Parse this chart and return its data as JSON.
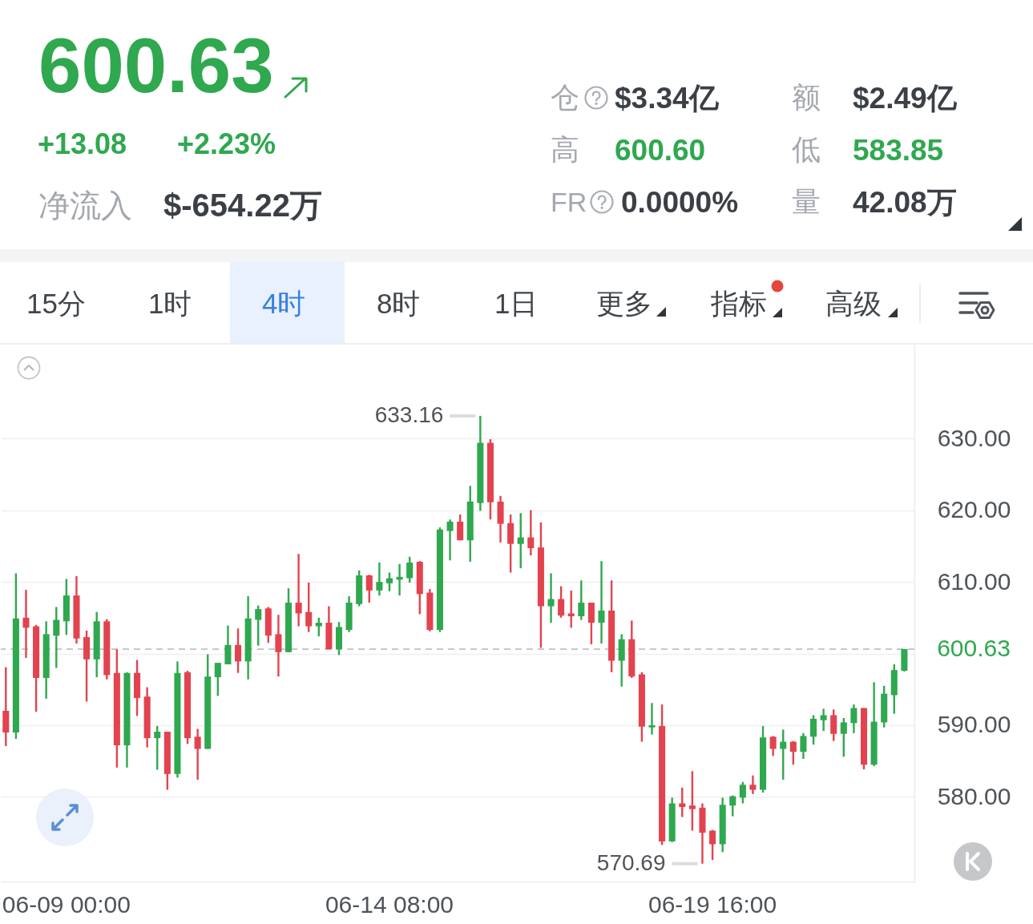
{
  "chart_data": [
    {
      "type": "other",
      "annotations": [
        "600.63",
        "+13.08",
        "+2.23%",
        "净流入",
        "$-654.22万",
        "仓",
        "$3.34亿",
        "额",
        "$2.49亿",
        "高",
        "600.60",
        "低",
        "583.85",
        "FR",
        "0.0000%",
        "量",
        "42.08万",
        "15分",
        "1时",
        "4时",
        "8时",
        "1日",
        "更多",
        "指标",
        "高级"
      ]
    },
    {
      "type": "candlestick",
      "categories": [
        null,
        null,
        null,
        null,
        null,
        null,
        "06-09 00:00",
        null,
        null,
        null,
        null,
        null,
        null,
        null,
        null,
        null,
        null,
        null,
        null,
        null,
        null,
        null,
        null,
        null,
        null,
        null,
        null,
        null,
        null,
        null,
        null,
        null,
        null,
        null,
        null,
        null,
        null,
        null,
        "06-14 08:00",
        null,
        null,
        null,
        null,
        null,
        null,
        null,
        null,
        null,
        null,
        null,
        null,
        null,
        null,
        null,
        null,
        null,
        null,
        null,
        null,
        null,
        null,
        null,
        null,
        null,
        null,
        null,
        null,
        null,
        null,
        null,
        "06-19 16:00",
        null,
        null,
        null,
        null,
        null,
        null,
        null,
        null,
        null,
        null,
        null,
        null,
        null,
        null,
        null,
        null,
        null,
        null,
        null
      ],
      "ohlc": [
        [
          592.0,
          598.1,
          587.1,
          589.0
        ],
        [
          589.0,
          611.2,
          588.1,
          604.9
        ],
        [
          605.0,
          608.9,
          599.4,
          603.6
        ],
        [
          603.8,
          604.0,
          591.9,
          596.6
        ],
        [
          596.6,
          604.5,
          593.7,
          602.7
        ],
        [
          602.5,
          606.5,
          598.0,
          604.7
        ],
        [
          604.5,
          610.4,
          602.6,
          608.1
        ],
        [
          608.1,
          610.8,
          601.4,
          602.1
        ],
        [
          602.3,
          603.2,
          593.3,
          599.2
        ],
        [
          599.2,
          605.8,
          596.7,
          604.5
        ],
        [
          604.5,
          604.8,
          596.4,
          597.0
        ],
        [
          597.3,
          600.6,
          584.1,
          587.2
        ],
        [
          587.2,
          597.4,
          584.1,
          597.3
        ],
        [
          597.3,
          599.1,
          591.3,
          593.8
        ],
        [
          594.0,
          595.3,
          586.9,
          588.2
        ],
        [
          588.2,
          589.9,
          583.8,
          589.1
        ],
        [
          589.1,
          589.1,
          581.0,
          583.2
        ],
        [
          583.2,
          598.9,
          582.7,
          597.3
        ],
        [
          597.4,
          597.6,
          587.4,
          588.2
        ],
        [
          588.4,
          589.5,
          582.4,
          586.7
        ],
        [
          586.7,
          599.9,
          586.7,
          596.8
        ],
        [
          596.7,
          598.7,
          594.1,
          598.7
        ],
        [
          598.5,
          603.9,
          598.5,
          601.2
        ],
        [
          601.2,
          603.5,
          597.3,
          598.9
        ],
        [
          598.9,
          608.0,
          596.4,
          604.9
        ],
        [
          604.7,
          606.7,
          601.1,
          606.2
        ],
        [
          606.3,
          606.5,
          601.5,
          602.5
        ],
        [
          602.7,
          605.4,
          596.8,
          600.2
        ],
        [
          600.2,
          609.1,
          600.2,
          607.1
        ],
        [
          607.1,
          613.9,
          603.8,
          605.6
        ],
        [
          605.8,
          609.9,
          603.0,
          603.8
        ],
        [
          603.8,
          605.0,
          602.4,
          604.3
        ],
        [
          604.3,
          606.6,
          600.6,
          600.6
        ],
        [
          600.6,
          604.4,
          599.8,
          603.7
        ],
        [
          603.3,
          608.0,
          603.0,
          607.1
        ],
        [
          606.9,
          611.6,
          606.6,
          610.9
        ],
        [
          610.9,
          611.0,
          607.1,
          608.8
        ],
        [
          608.8,
          612.7,
          608.1,
          610.0
        ],
        [
          609.8,
          611.3,
          608.7,
          610.5
        ],
        [
          610.3,
          612.5,
          608.1,
          610.7
        ],
        [
          610.5,
          613.5,
          609.9,
          612.7
        ],
        [
          612.8,
          612.9,
          605.5,
          608.3
        ],
        [
          608.5,
          609.0,
          603.1,
          603.3
        ],
        [
          603.3,
          617.6,
          603.0,
          617.3
        ],
        [
          617.1,
          618.7,
          613.0,
          618.4
        ],
        [
          618.4,
          619.4,
          615.8,
          615.8
        ],
        [
          615.8,
          623.4,
          612.8,
          621.2
        ],
        [
          621.0,
          633.16,
          619.9,
          629.4
        ],
        [
          629.4,
          629.9,
          618.7,
          621.1
        ],
        [
          621.2,
          622.0,
          615.5,
          618.1
        ],
        [
          618.2,
          619.4,
          611.3,
          615.3
        ],
        [
          615.3,
          619.6,
          611.9,
          616.2
        ],
        [
          616.2,
          620.0,
          613.7,
          614.7
        ],
        [
          614.8,
          618.3,
          600.8,
          606.6
        ],
        [
          606.6,
          611.2,
          604.3,
          607.6
        ],
        [
          607.6,
          609.4,
          605.0,
          605.3
        ],
        [
          605.6,
          608.8,
          603.6,
          605.2
        ],
        [
          605.2,
          610.2,
          604.7,
          607.1
        ],
        [
          607.1,
          607.1,
          601.3,
          604.3
        ],
        [
          604.3,
          612.9,
          601.4,
          606.0
        ],
        [
          606.0,
          610.2,
          597.4,
          599.0
        ],
        [
          599.0,
          602.7,
          595.4,
          602.0
        ],
        [
          602.0,
          604.6,
          596.6,
          596.8
        ],
        [
          597.1,
          597.4,
          587.7,
          589.8
        ],
        [
          589.7,
          593.1,
          588.7,
          590.0
        ],
        [
          589.9,
          592.9,
          573.3,
          573.8
        ],
        [
          573.8,
          579.9,
          573.7,
          579.1
        ],
        [
          579.1,
          581.3,
          577.2,
          578.6
        ],
        [
          578.8,
          583.6,
          575.3,
          578.3
        ],
        [
          578.5,
          579.1,
          570.69,
          575.0
        ],
        [
          575.3,
          575.4,
          571.2,
          573.4
        ],
        [
          573.4,
          579.9,
          572.3,
          578.9
        ],
        [
          578.8,
          580.2,
          577.3,
          580.1
        ],
        [
          579.9,
          582.1,
          579.1,
          581.7
        ],
        [
          581.7,
          583.0,
          580.4,
          581.0
        ],
        [
          581.0,
          589.9,
          580.6,
          588.3
        ],
        [
          588.4,
          588.5,
          585.7,
          586.7
        ],
        [
          586.7,
          589.4,
          582.4,
          587.7
        ],
        [
          587.7,
          587.8,
          584.5,
          586.3
        ],
        [
          586.3,
          588.9,
          585.3,
          588.5
        ],
        [
          588.4,
          591.4,
          587.3,
          590.9
        ],
        [
          590.7,
          592.3,
          589.2,
          591.4
        ],
        [
          591.4,
          592.2,
          587.8,
          588.8
        ],
        [
          588.8,
          591.0,
          585.6,
          590.4
        ],
        [
          590.3,
          592.9,
          588.9,
          592.4
        ],
        [
          592.4,
          592.4,
          583.85,
          584.5
        ],
        [
          584.5,
          596.0,
          584.3,
          590.5
        ],
        [
          590.4,
          595.5,
          589.7,
          594.4
        ],
        [
          594.2,
          598.5,
          591.6,
          597.7
        ],
        [
          597.6,
          600.63,
          597.5,
          600.63
        ]
      ],
      "colors": [
        "#e2434f",
        "#2fa84f",
        "#e2434f",
        "#e2434f",
        "#2fa84f",
        "#2fa84f",
        "#2fa84f",
        "#e2434f",
        "#e2434f",
        "#2fa84f",
        "#e2434f",
        "#e2434f",
        "#2fa84f",
        "#e2434f",
        "#e2434f",
        "#2fa84f",
        "#e2434f",
        "#2fa84f",
        "#e2434f",
        "#e2434f",
        "#2fa84f",
        "#2fa84f",
        "#2fa84f",
        "#e2434f",
        "#2fa84f",
        "#2fa84f",
        "#e2434f",
        "#e2434f",
        "#2fa84f",
        "#e2434f",
        "#e2434f",
        "#2fa84f",
        "#e2434f",
        "#2fa84f",
        "#2fa84f",
        "#2fa84f",
        "#e2434f",
        "#2fa84f",
        "#2fa84f",
        "#2fa84f",
        "#2fa84f",
        "#e2434f",
        "#e2434f",
        "#2fa84f",
        "#2fa84f",
        "#e2434f",
        "#2fa84f",
        "#2fa84f",
        "#e2434f",
        "#e2434f",
        "#e2434f",
        "#2fa84f",
        "#e2434f",
        "#e2434f",
        "#2fa84f",
        "#e2434f",
        "#e2434f",
        "#2fa84f",
        "#e2434f",
        "#2fa84f",
        "#e2434f",
        "#2fa84f",
        "#e2434f",
        "#e2434f",
        "#2fa84f",
        "#e2434f",
        "#2fa84f",
        "#e2434f",
        "#e2434f",
        "#e2434f",
        "#e2434f",
        "#2fa84f",
        "#2fa84f",
        "#2fa84f",
        "#e2434f",
        "#2fa84f",
        "#e2434f",
        "#2fa84f",
        "#e2434f",
        "#2fa84f",
        "#2fa84f",
        "#2fa84f",
        "#e2434f",
        "#2fa84f",
        "#2fa84f",
        "#e2434f",
        "#2fa84f",
        "#2fa84f",
        "#2fa84f",
        "#2fa84f"
      ],
      "ylim": [
        568.2,
        643.1
      ],
      "yticks": [
        {
          "value": 580,
          "label": "580.00"
        },
        {
          "value": 590,
          "label": "590.00"
        },
        {
          "value": 600,
          "label": null
        },
        {
          "value": 610,
          "label": "610.00"
        },
        {
          "value": 620,
          "label": "620.00"
        },
        {
          "value": 630,
          "label": "630.00"
        }
      ],
      "grid": "y",
      "ref_lines": [
        {
          "axis": "y",
          "value": 600.63,
          "label": "600.63",
          "color": "#b5b5b5",
          "line_style": "dashed"
        }
      ],
      "annotations": [
        "633.16",
        "570.69"
      ]
    }
  ]
}
